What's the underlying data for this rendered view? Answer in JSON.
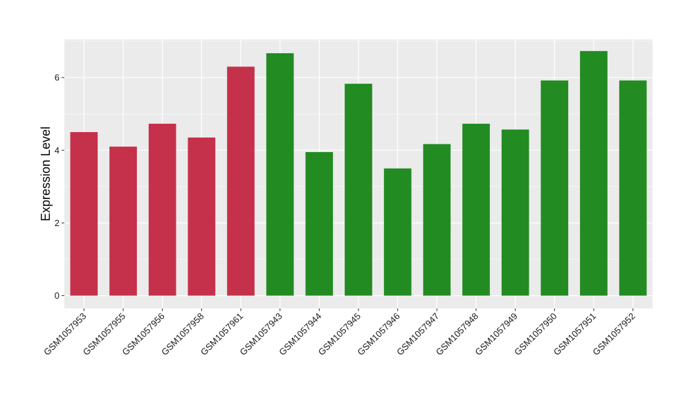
{
  "chart_data": {
    "type": "bar",
    "title": "",
    "xlabel": "",
    "ylabel": "Expression Level",
    "ylim": [
      -0.35,
      7.05
    ],
    "yticks": [
      0,
      2,
      4,
      6
    ],
    "grid": true,
    "categories": [
      "GSM1057953",
      "GSM1057955",
      "GSM1057956",
      "GSM1057958",
      "GSM1057961",
      "GSM1057943",
      "GSM1057944",
      "GSM1057945",
      "GSM1057946",
      "GSM1057947",
      "GSM1057948",
      "GSM1057949",
      "GSM1057950",
      "GSM1057951",
      "GSM1057952"
    ],
    "values": [
      4.5,
      4.1,
      4.73,
      4.35,
      6.3,
      6.67,
      3.95,
      5.83,
      3.5,
      4.17,
      4.73,
      4.57,
      5.92,
      6.73,
      5.92
    ],
    "groups": [
      0,
      0,
      0,
      0,
      0,
      1,
      1,
      1,
      1,
      1,
      1,
      1,
      1,
      1,
      1
    ],
    "group_colors": [
      "#c5314a",
      "#228b22"
    ]
  },
  "colors": {
    "panel_background": "#ebebeb",
    "grid_major": "#ffffff",
    "grid_minor": "#f5f5f5",
    "axis_tick": "#333333"
  }
}
